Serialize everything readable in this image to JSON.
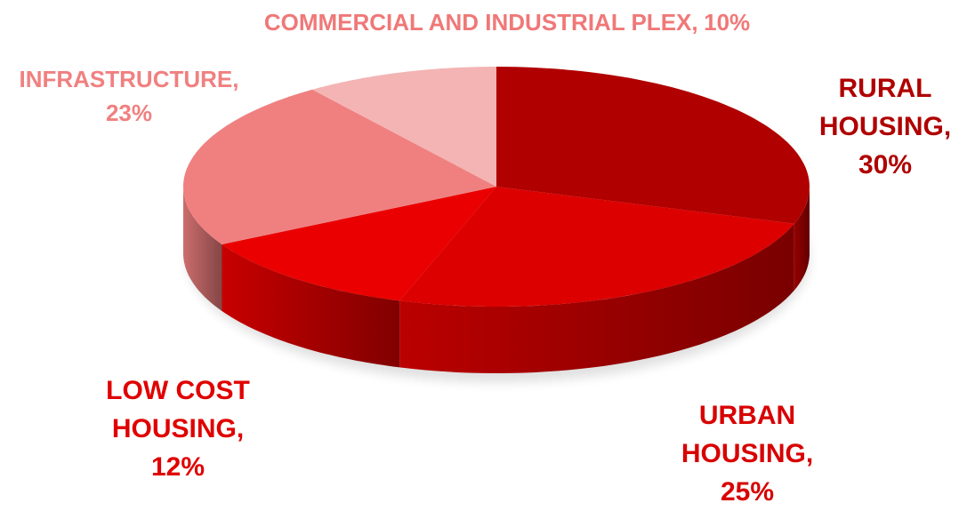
{
  "chart_data": {
    "type": "pie",
    "categories": [
      "RURAL HOUSING",
      "URBAN HOUSING",
      "LOW COST HOUSING",
      "INFRASTRUCTURE",
      "COMMERCIAL AND INDUSTRIAL PLEX"
    ],
    "values": [
      30,
      25,
      12,
      23,
      10
    ],
    "value_labels": [
      "30%",
      "25%",
      "12%",
      "23%",
      "10%"
    ],
    "colors": [
      "#b00000",
      "#dc0000",
      "#ea0000",
      "#f08080",
      "#f4b4b4"
    ],
    "label_colors": [
      "#b00000",
      "#d80000",
      "#e00000",
      "#f08080",
      "#f07878"
    ]
  }
}
